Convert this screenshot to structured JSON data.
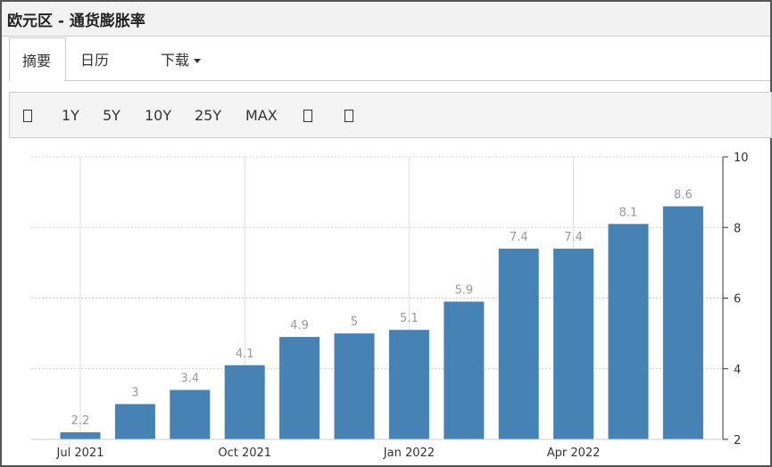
{
  "header": {
    "title": "欧元区 - 通货膨胀率"
  },
  "tabs": [
    "摘要",
    "日历",
    "下载"
  ],
  "toolbar": {
    "buttons": [
      "1Y",
      "5Y",
      "10Y",
      "25Y",
      "MAX"
    ]
  },
  "chart_data": {
    "type": "bar",
    "categories": [
      "Jul 2021",
      null,
      null,
      "Oct 2021",
      null,
      null,
      "Jan 2022",
      null,
      null,
      "Apr 2022",
      null,
      null
    ],
    "values": [
      2.2,
      3,
      3.4,
      4.1,
      4.9,
      5,
      5.1,
      5.9,
      7.4,
      7.4,
      8.1,
      8.6
    ],
    "color": "#4682b4",
    "ylim": [
      2,
      10
    ],
    "yticks": [
      2,
      4,
      6,
      8,
      10
    ],
    "grid": true,
    "axis_side": "right"
  }
}
